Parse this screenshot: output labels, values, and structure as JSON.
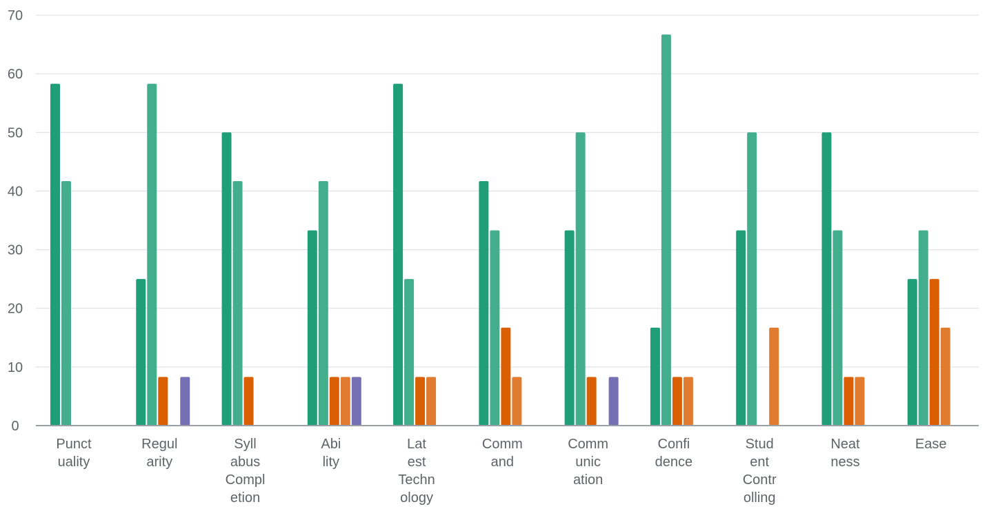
{
  "chart_data": {
    "type": "bar",
    "title": "",
    "xlabel": "",
    "ylabel": "",
    "ylim": [
      0,
      70
    ],
    "yticks": [
      0,
      10,
      20,
      30,
      40,
      50,
      60,
      70
    ],
    "grid": true,
    "legend": "none",
    "categories": [
      [
        "Punct",
        "uality"
      ],
      [
        "Regul",
        "arity"
      ],
      [
        "Syll",
        "abus",
        "Compl",
        "etion"
      ],
      [
        "Abi",
        "lity"
      ],
      [
        "Lat",
        "est",
        "Techn",
        "ology"
      ],
      [
        "Comm",
        "and"
      ],
      [
        "Comm",
        "unic",
        "ation"
      ],
      [
        "Confi",
        "dence"
      ],
      [
        "Stud",
        "ent",
        "Contr",
        "olling"
      ],
      [
        "Neat",
        "ness"
      ],
      [
        "Ease"
      ]
    ],
    "series": [
      {
        "color": "#1f9e77",
        "values": [
          58.3,
          25.0,
          50.0,
          33.3,
          58.3,
          41.7,
          33.3,
          16.7,
          33.3,
          50.0,
          25.0
        ]
      },
      {
        "color": "#43ae8b",
        "values": [
          41.7,
          58.3,
          41.7,
          41.7,
          25.0,
          33.3,
          50.0,
          66.7,
          50.0,
          33.3,
          33.3
        ]
      },
      {
        "color": "#d95f02",
        "values": [
          0,
          8.3,
          8.3,
          8.3,
          8.3,
          16.7,
          8.3,
          8.3,
          0,
          8.3,
          25.0
        ]
      },
      {
        "color": "#e07b30",
        "values": [
          0,
          0,
          0,
          8.3,
          8.3,
          8.3,
          0,
          8.3,
          16.7,
          8.3,
          16.7
        ]
      },
      {
        "color": "#7570b3",
        "values": [
          0,
          8.3,
          0,
          8.3,
          0,
          0,
          8.3,
          0,
          0,
          0,
          0
        ]
      }
    ]
  }
}
